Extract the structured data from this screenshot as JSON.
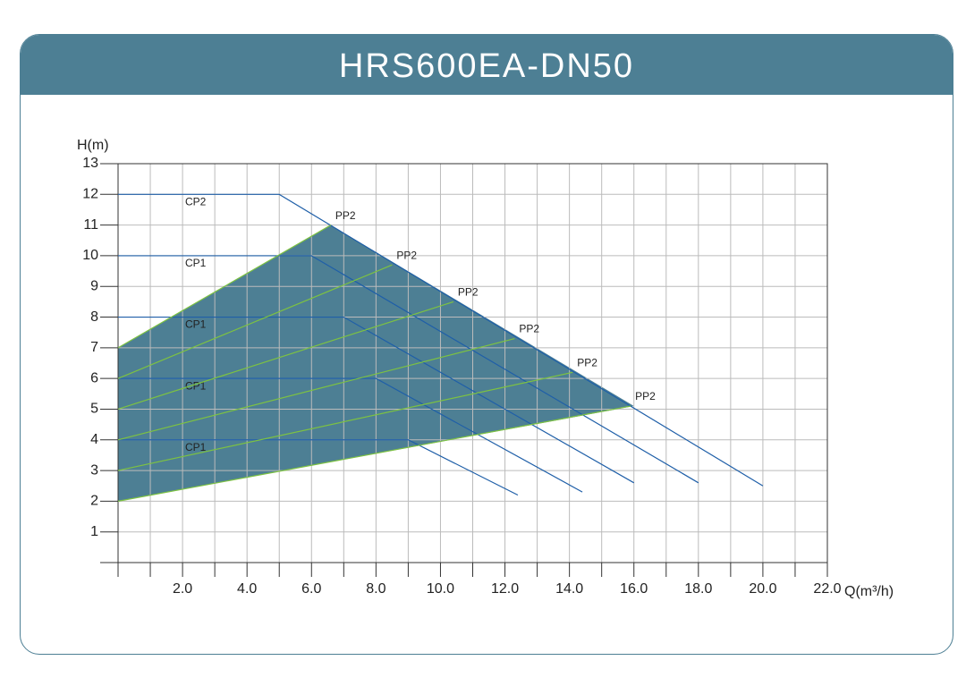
{
  "chart_data": {
    "type": "line",
    "title": "HRS600EA-DN50",
    "x_label": "Q(m³/h)",
    "y_label": "H(m)",
    "xlim": [
      0,
      22
    ],
    "ylim": [
      0,
      13
    ],
    "xticks": [
      {
        "value": 2,
        "label": "2.0"
      },
      {
        "value": 4,
        "label": "4.0"
      },
      {
        "value": 6,
        "label": "6.0"
      },
      {
        "value": 8,
        "label": "8.0"
      },
      {
        "value": 10,
        "label": "10.0"
      },
      {
        "value": 12,
        "label": "12.0"
      },
      {
        "value": 14,
        "label": "14.0"
      },
      {
        "value": 16,
        "label": "16.0"
      },
      {
        "value": 18,
        "label": "18.0"
      },
      {
        "value": 20,
        "label": "20.0"
      },
      {
        "value": 22,
        "label": "22.0"
      }
    ],
    "yticks": [
      1,
      2,
      3,
      4,
      5,
      6,
      7,
      8,
      9,
      10,
      11,
      12,
      13
    ],
    "grid": true,
    "area": {
      "color": "#4d7f94",
      "x": [
        0,
        6.6,
        16,
        0
      ],
      "y": [
        7,
        11,
        5.1,
        2
      ]
    },
    "series": [
      {
        "name": "CP2",
        "color": "#1f5fa8",
        "x": [
          0,
          5,
          20
        ],
        "y": [
          12,
          12,
          2.5
        ]
      },
      {
        "name": "CP1",
        "color": "#1f5fa8",
        "x": [
          0,
          6,
          18
        ],
        "y": [
          10,
          10,
          2.6
        ]
      },
      {
        "name": "CP1",
        "color": "#1f5fa8",
        "x": [
          0,
          7,
          16
        ],
        "y": [
          8,
          8,
          2.6
        ]
      },
      {
        "name": "CP1",
        "color": "#1f5fa8",
        "x": [
          0,
          8,
          14.4
        ],
        "y": [
          6,
          6,
          2.3
        ]
      },
      {
        "name": "CP1",
        "color": "#1f5fa8",
        "x": [
          0,
          9,
          12.4
        ],
        "y": [
          4,
          4,
          2.2
        ]
      },
      {
        "name": "PP2",
        "color": "#7dc242",
        "x": [
          0,
          6.6
        ],
        "y": [
          7,
          11
        ]
      },
      {
        "name": "PP2",
        "color": "#7dc242",
        "x": [
          0,
          8.5
        ],
        "y": [
          6,
          9.7
        ]
      },
      {
        "name": "PP2",
        "color": "#7dc242",
        "x": [
          0,
          10.4
        ],
        "y": [
          5,
          8.5
        ]
      },
      {
        "name": "PP2",
        "color": "#7dc242",
        "x": [
          0,
          12.3
        ],
        "y": [
          4,
          7.3
        ]
      },
      {
        "name": "PP2",
        "color": "#7dc242",
        "x": [
          0,
          14.1
        ],
        "y": [
          3,
          6.2
        ]
      },
      {
        "name": "PP2",
        "color": "#7dc242",
        "x": [
          0,
          15.9
        ],
        "y": [
          2,
          5.1
        ]
      }
    ]
  }
}
